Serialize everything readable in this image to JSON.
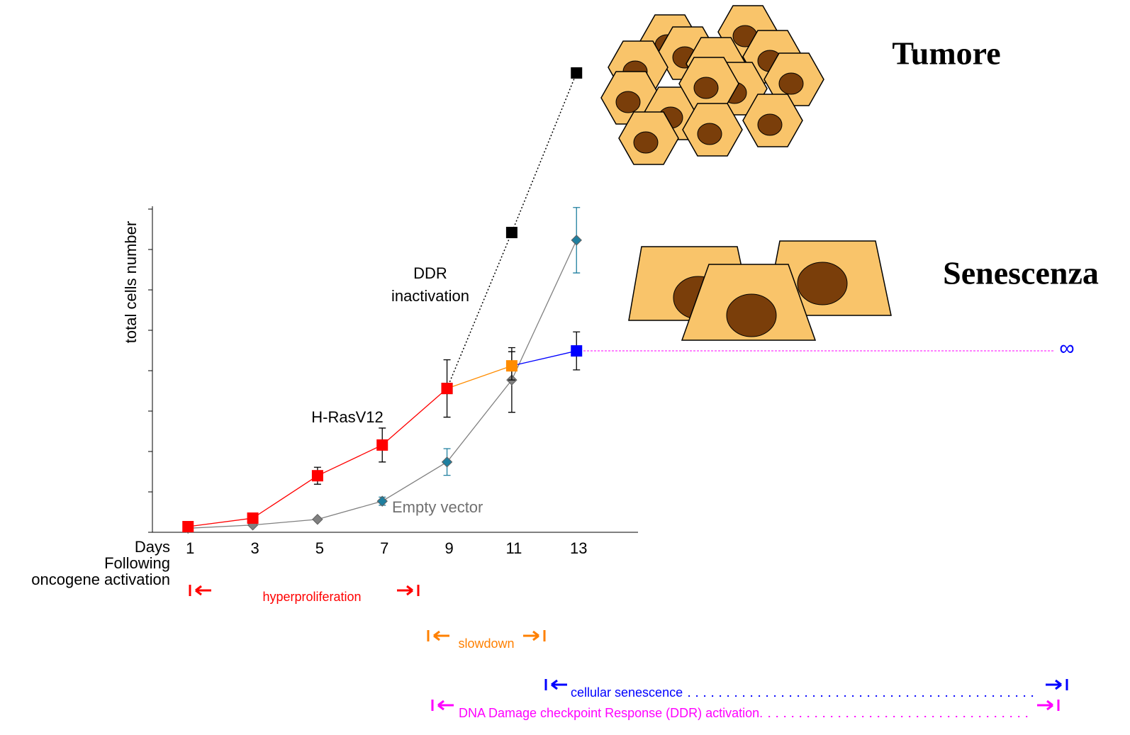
{
  "chart_data": {
    "type": "line",
    "y_label": "total cells number",
    "x_label": [
      "Days",
      "Following",
      "oncogene activation"
    ],
    "xlim": [
      -0.1,
      14.9
    ],
    "xticks": [
      1,
      3,
      5,
      7,
      9,
      11,
      13
    ],
    "ylim": [
      0,
      8
    ],
    "yticks": [
      0,
      1,
      2,
      3,
      4,
      5,
      6,
      7,
      8
    ],
    "series": [
      {
        "name": "DDR inactivation",
        "color": "#000000",
        "dash": "2,3",
        "marker": "square",
        "x": [
          9,
          11,
          13
        ],
        "values": [
          3.56,
          7.42,
          11.37
        ]
      },
      {
        "name": "Empty vector",
        "color": "#808080",
        "marker": "diamond",
        "marker_colors": [
          "#808080",
          "#808080",
          "#808080",
          "#1f7f9f",
          "#1f7f9f",
          "#808080",
          "#1f7f9f"
        ],
        "x": [
          1,
          3,
          5,
          7,
          9,
          11,
          13
        ],
        "values": [
          0.1,
          0.18,
          0.32,
          0.77,
          1.74,
          3.77,
          7.23
        ],
        "errors": [
          0,
          0,
          0,
          0.1,
          0.33,
          0.8,
          0.81
        ],
        "error_colors": [
          "#000000",
          "#000000",
          "#000000",
          "#1f7f9f",
          "#1f7f9f",
          "#000000",
          "#1f7f9f"
        ]
      },
      {
        "name": "H-RasV12",
        "color": "#ff0000",
        "marker": "square",
        "marker_colors": [
          "#ff0000",
          "#ff0000",
          "#ff0000",
          "#ff0000",
          "#ff0000",
          "#ff8c00",
          "#0000ff"
        ],
        "x": [
          1,
          3,
          5,
          7,
          9,
          11,
          13
        ],
        "values": [
          0.14,
          0.35,
          1.4,
          2.16,
          3.56,
          4.12,
          4.49
        ],
        "errors": [
          0.05,
          0.08,
          0.21,
          0.42,
          0.71,
          0.35,
          0.47
        ],
        "error_colors": [
          "#000000",
          "#000000",
          "#000000",
          "#000000",
          "#000000",
          "#000000",
          "#000000"
        ]
      }
    ],
    "annotations": {
      "ddr": [
        "DDR",
        "inactivation"
      ],
      "ras": "H-RasV12",
      "empty": "Empty vector",
      "infinity": "∞"
    },
    "illustrations": {
      "tumor": "Tumore",
      "senescence": "Senescenza"
    },
    "phases": [
      {
        "label": "hyperproliferation",
        "color": "#ff0000"
      },
      {
        "label": "slowdown",
        "color": "#ff8000"
      },
      {
        "label": "cellular senescence",
        "color": "#0000ff"
      },
      {
        "label": "DNA Damage checkpoint Response (DDR) activation.",
        "color": "#ff00ff"
      }
    ]
  }
}
